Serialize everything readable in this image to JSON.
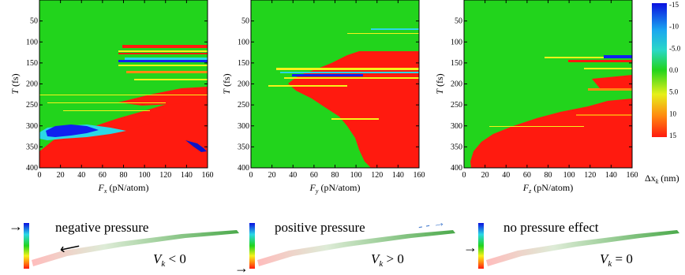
{
  "colors": {
    "green": "#22d41c",
    "red": "#ff1a0f",
    "yellow": "#f6f21a",
    "orange": "#ff8a10",
    "cyan": "#2ad8e6",
    "blue": "#1020f0",
    "dblue": "#0a14c8"
  },
  "chart_data": [
    {
      "type": "heatmap",
      "xlabel": "F",
      "xlabel_sub": "x",
      "xlabel_unit": " (pN/atom)",
      "ylabel": "T",
      "ylabel_unit": " (fs)",
      "xticks": [
        "0",
        "20",
        "40",
        "60",
        "80",
        "100",
        "120",
        "140",
        "160"
      ],
      "yticks": [
        "50",
        "100",
        "150",
        "200",
        "250",
        "300",
        "350",
        "400"
      ],
      "xlim": [
        0,
        160
      ],
      "ylim": [
        400,
        0
      ]
    },
    {
      "type": "heatmap",
      "xlabel": "F",
      "xlabel_sub": "y",
      "xlabel_unit": " (pN/atom)",
      "ylabel": "T",
      "ylabel_unit": " (fs)",
      "xticks": [
        "0",
        "20",
        "40",
        "60",
        "80",
        "100",
        "120",
        "140",
        "160"
      ],
      "yticks": [
        "50",
        "100",
        "150",
        "200",
        "250",
        "300",
        "350",
        "400"
      ],
      "xlim": [
        0,
        160
      ],
      "ylim": [
        400,
        0
      ]
    },
    {
      "type": "heatmap",
      "xlabel": "F",
      "xlabel_sub": "z",
      "xlabel_unit": " (pN/atom)",
      "ylabel": "T",
      "ylabel_unit": " (fs)",
      "xticks": [
        "0",
        "20",
        "40",
        "60",
        "80",
        "100",
        "120",
        "140",
        "160"
      ],
      "yticks": [
        "50",
        "100",
        "150",
        "200",
        "250",
        "300",
        "350",
        "400"
      ],
      "xlim": [
        0,
        160
      ],
      "ylim": [
        400,
        0
      ]
    }
  ],
  "colorbar": {
    "ticks": [
      "-15",
      "-10",
      "-5.0",
      "0.0",
      "5.0",
      "10",
      "15"
    ],
    "label_delta": "Δx",
    "label_sub": "k",
    "label_unit": " (nm)"
  },
  "captions": [
    {
      "text": "negative pressure",
      "vk_var": "V",
      "vk_sub": "k",
      "vk_rel": " < 0"
    },
    {
      "text": "positive pressure",
      "vk_var": "V",
      "vk_sub": "k",
      "vk_rel": " > 0"
    },
    {
      "text": "no pressure effect",
      "vk_var": "V",
      "vk_sub": "k",
      "vk_rel": " = 0"
    }
  ]
}
